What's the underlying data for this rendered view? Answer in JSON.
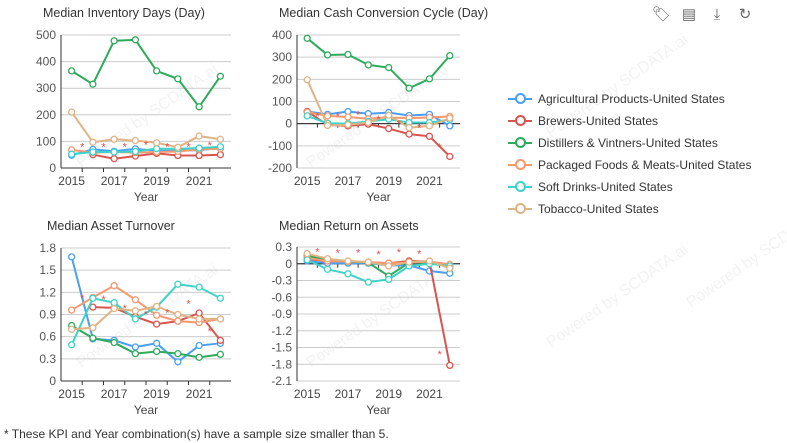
{
  "toolbar": [
    {
      "name": "tag-icon",
      "glyph": "🏷"
    },
    {
      "name": "data-view-icon",
      "glyph": "▤"
    },
    {
      "name": "download-icon",
      "glyph": "⤓"
    },
    {
      "name": "refresh-icon",
      "glyph": "↻"
    }
  ],
  "watermark": "Powered by SCDATA.ai",
  "legend": [
    {
      "label": "Agricultural Products-United States",
      "color": "#4a9ff5"
    },
    {
      "label": "Brewers-United States",
      "color": "#d9534f"
    },
    {
      "label": "Distillers & Vintners-United States",
      "color": "#2eaa5c"
    },
    {
      "label": "Packaged Foods & Meats-United States",
      "color": "#f7986f"
    },
    {
      "label": "Soft Drinks-United States",
      "color": "#3dd3c8"
    },
    {
      "label": "Tobacco-United States",
      "color": "#e0b384"
    }
  ],
  "footnote": "* These KPI and Year combination(s) have a sample size smaller than 5.",
  "chart_data": [
    {
      "type": "line",
      "title": "Median Inventory Days (Day)",
      "xlabel": "Year",
      "ylabel": "",
      "categories": [
        "2015",
        "2016",
        "2017",
        "2018",
        "2019",
        "2020",
        "2021",
        "2022"
      ],
      "x_tick_labels": [
        "2015",
        "2017",
        "2019",
        "2021"
      ],
      "ylim": [
        0,
        500
      ],
      "yticks": [
        "0",
        "100",
        "200",
        "300",
        "400",
        "500"
      ],
      "grid": true,
      "series": [
        {
          "name": "Agricultural Products-United States",
          "values": [
            48,
            70,
            63,
            72,
            65,
            65,
            67,
            75
          ]
        },
        {
          "name": "Brewers-United States",
          "values": [
            null,
            50,
            35,
            45,
            55,
            47,
            47,
            50
          ]
        },
        {
          "name": "Distillers & Vintners-United States",
          "values": [
            365,
            315,
            478,
            482,
            365,
            335,
            230,
            345
          ]
        },
        {
          "name": "Packaged Foods & Meats-United States",
          "values": [
            68,
            58,
            60,
            58,
            60,
            62,
            70,
            73
          ]
        },
        {
          "name": "Soft Drinks-United States",
          "values": [
            52,
            60,
            60,
            62,
            73,
            72,
            75,
            80
          ]
        },
        {
          "name": "Tobacco-United States",
          "values": [
            210,
            97,
            108,
            103,
            95,
            78,
            120,
            108
          ]
        }
      ],
      "small_sample_markers": [
        [
          2015.5,
          85
        ],
        [
          2016.5,
          85
        ],
        [
          2017.5,
          85
        ],
        [
          2018.5,
          93
        ],
        [
          2019.5,
          85
        ],
        [
          2020.5,
          85
        ],
        [
          2021.5,
          90
        ]
      ]
    },
    {
      "type": "line",
      "title": "Median Cash Conversion Cycle (Day)",
      "xlabel": "Year",
      "ylabel": "",
      "categories": [
        "2015",
        "2016",
        "2017",
        "2018",
        "2019",
        "2020",
        "2021",
        "2022"
      ],
      "x_tick_labels": [
        "2015",
        "2017",
        "2019",
        "2021"
      ],
      "ylim": [
        -200,
        400
      ],
      "yticks": [
        "-200",
        "-100",
        "0",
        "100",
        "200",
        "300",
        "400"
      ],
      "grid": true,
      "series": [
        {
          "name": "Agricultural Products-United States",
          "values": [
            55,
            42,
            55,
            45,
            50,
            37,
            42,
            -10
          ]
        },
        {
          "name": "Brewers-United States",
          "values": [
            55,
            -5,
            -10,
            -2,
            -22,
            -47,
            -57,
            -148
          ]
        },
        {
          "name": "Distillers & Vintners-United States",
          "values": [
            385,
            310,
            312,
            265,
            253,
            160,
            202,
            307
          ]
        },
        {
          "name": "Packaged Foods & Meats-United States",
          "values": [
            52,
            35,
            30,
            22,
            28,
            25,
            28,
            33
          ]
        },
        {
          "name": "Soft Drinks-United States",
          "values": [
            35,
            2,
            0,
            10,
            20,
            5,
            5,
            18
          ]
        },
        {
          "name": "Tobacco-United States",
          "values": [
            198,
            -8,
            -5,
            5,
            38,
            -18,
            -10,
            25
          ]
        }
      ],
      "small_sample_markers": [
        [
          2015.5,
          40
        ],
        [
          2016.5,
          38
        ],
        [
          2017.5,
          45
        ],
        [
          2018.5,
          25
        ],
        [
          2019.5,
          5
        ],
        [
          2020.5,
          -12
        ],
        [
          2021.5,
          -100
        ]
      ]
    },
    {
      "type": "line",
      "title": "Median Asset Turnover",
      "xlabel": "Year",
      "ylabel": "",
      "categories": [
        "2015",
        "2016",
        "2017",
        "2018",
        "2019",
        "2020",
        "2021",
        "2022"
      ],
      "x_tick_labels": [
        "2015",
        "2017",
        "2019",
        "2021"
      ],
      "ylim": [
        0,
        1.8
      ],
      "yticks": [
        "0",
        "0.3",
        "0.6",
        "0.9",
        "1.2",
        "1.5",
        "1.8"
      ],
      "grid": true,
      "series": [
        {
          "name": "Agricultural Products-United States",
          "values": [
            1.68,
            0.57,
            0.55,
            0.46,
            0.51,
            0.26,
            0.48,
            0.51
          ]
        },
        {
          "name": "Brewers-United States",
          "values": [
            null,
            1.0,
            0.99,
            0.87,
            0.77,
            0.81,
            0.92,
            0.55
          ]
        },
        {
          "name": "Distillers & Vintners-United States",
          "values": [
            0.75,
            0.58,
            0.52,
            0.37,
            0.4,
            0.37,
            0.32,
            0.36
          ]
        },
        {
          "name": "Packaged Foods & Meats-United States",
          "values": [
            0.96,
            1.13,
            1.29,
            1.1,
            0.89,
            0.81,
            0.79,
            0.84
          ]
        },
        {
          "name": "Soft Drinks-United States",
          "values": [
            0.49,
            1.12,
            1.06,
            0.84,
            1.0,
            1.31,
            1.27,
            1.12
          ]
        },
        {
          "name": "Tobacco-United States",
          "values": [
            0.7,
            0.72,
            0.98,
            0.95,
            1.01,
            0.9,
            0.84,
            0.84
          ]
        }
      ],
      "small_sample_markers": [
        [
          2015.5,
          1.14
        ],
        [
          2016.5,
          1.12
        ],
        [
          2017.5,
          1.0
        ],
        [
          2018.5,
          0.92
        ],
        [
          2019.5,
          0.94
        ],
        [
          2020.5,
          1.06
        ],
        [
          2021.5,
          0.69
        ]
      ]
    },
    {
      "type": "line",
      "title": "Median Return on Assets",
      "xlabel": "Year",
      "ylabel": "",
      "categories": [
        "2015",
        "2016",
        "2017",
        "2018",
        "2019",
        "2020",
        "2021",
        "2022"
      ],
      "x_tick_labels": [
        "2015",
        "2017",
        "2019",
        "2021"
      ],
      "ylim": [
        -2.1,
        0.3
      ],
      "yticks": [
        "-2.1",
        "-1.8",
        "-1.5",
        "-1.2",
        "-0.9",
        "-0.6",
        "-0.3",
        "0",
        "0.3"
      ],
      "grid": true,
      "series": [
        {
          "name": "Agricultural Products-United States",
          "values": [
            0.05,
            0.01,
            0.01,
            0.01,
            -0.03,
            -0.03,
            -0.13,
            -0.17
          ]
        },
        {
          "name": "Brewers-United States",
          "values": [
            0.08,
            0.05,
            0.04,
            0.03,
            0.01,
            0.05,
            0.04,
            -1.82
          ]
        },
        {
          "name": "Distillers & Vintners-United States",
          "values": [
            0.14,
            0.07,
            0.04,
            0.02,
            -0.22,
            0.02,
            0.02,
            -0.05
          ]
        },
        {
          "name": "Packaged Foods & Meats-United States",
          "values": [
            0.1,
            0.05,
            0.04,
            0.03,
            0.01,
            0.02,
            0.04,
            -0.01
          ]
        },
        {
          "name": "Soft Drinks-United States",
          "values": [
            0.07,
            -0.1,
            -0.18,
            -0.33,
            -0.28,
            -0.04,
            0.0,
            -0.04
          ]
        },
        {
          "name": "Tobacco-United States",
          "values": [
            0.18,
            0.09,
            0.05,
            0.03,
            -0.04,
            0.03,
            0.05,
            -0.08
          ]
        }
      ],
      "small_sample_markers": [
        [
          2015.5,
          0.24
        ],
        [
          2016.5,
          0.22
        ],
        [
          2017.5,
          0.22
        ],
        [
          2018.5,
          0.19
        ],
        [
          2019.5,
          0.23
        ],
        [
          2020.5,
          0.2
        ],
        [
          2021.5,
          -1.6
        ]
      ]
    }
  ]
}
